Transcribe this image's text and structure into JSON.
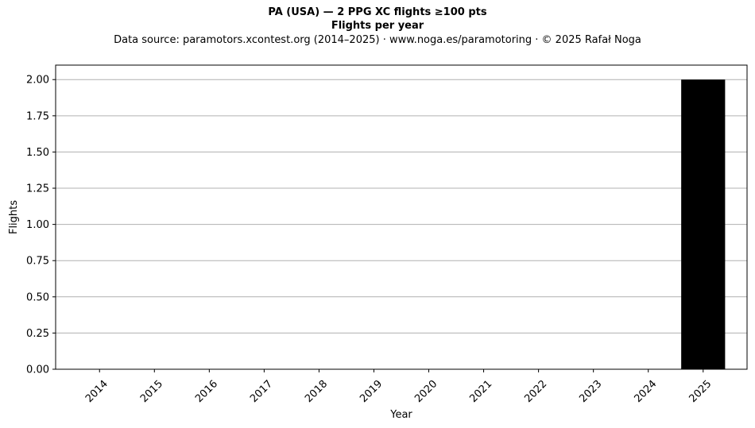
{
  "chart_data": {
    "type": "bar",
    "title": "PA (USA)  —  2 PPG XC flights ≥100 pts",
    "subtitle": "Flights per year",
    "source_note": "Data source: paramotors.xcontest.org (2014–2025)  ·  www.noga.es/paramotoring  ·  © 2025 Rafał Noga",
    "xlabel": "Year",
    "ylabel": "Flights",
    "categories": [
      "2014",
      "2015",
      "2016",
      "2017",
      "2018",
      "2019",
      "2020",
      "2021",
      "2022",
      "2023",
      "2024",
      "2025"
    ],
    "values": [
      0,
      0,
      0,
      0,
      0,
      0,
      0,
      0,
      0,
      0,
      0,
      2
    ],
    "ylim": [
      0,
      2.1
    ],
    "yticks": [
      "0.00",
      "0.25",
      "0.50",
      "0.75",
      "1.00",
      "1.25",
      "1.50",
      "1.75",
      "2.00"
    ],
    "bar_color": "#000000",
    "grid": "y",
    "legend": "none"
  }
}
